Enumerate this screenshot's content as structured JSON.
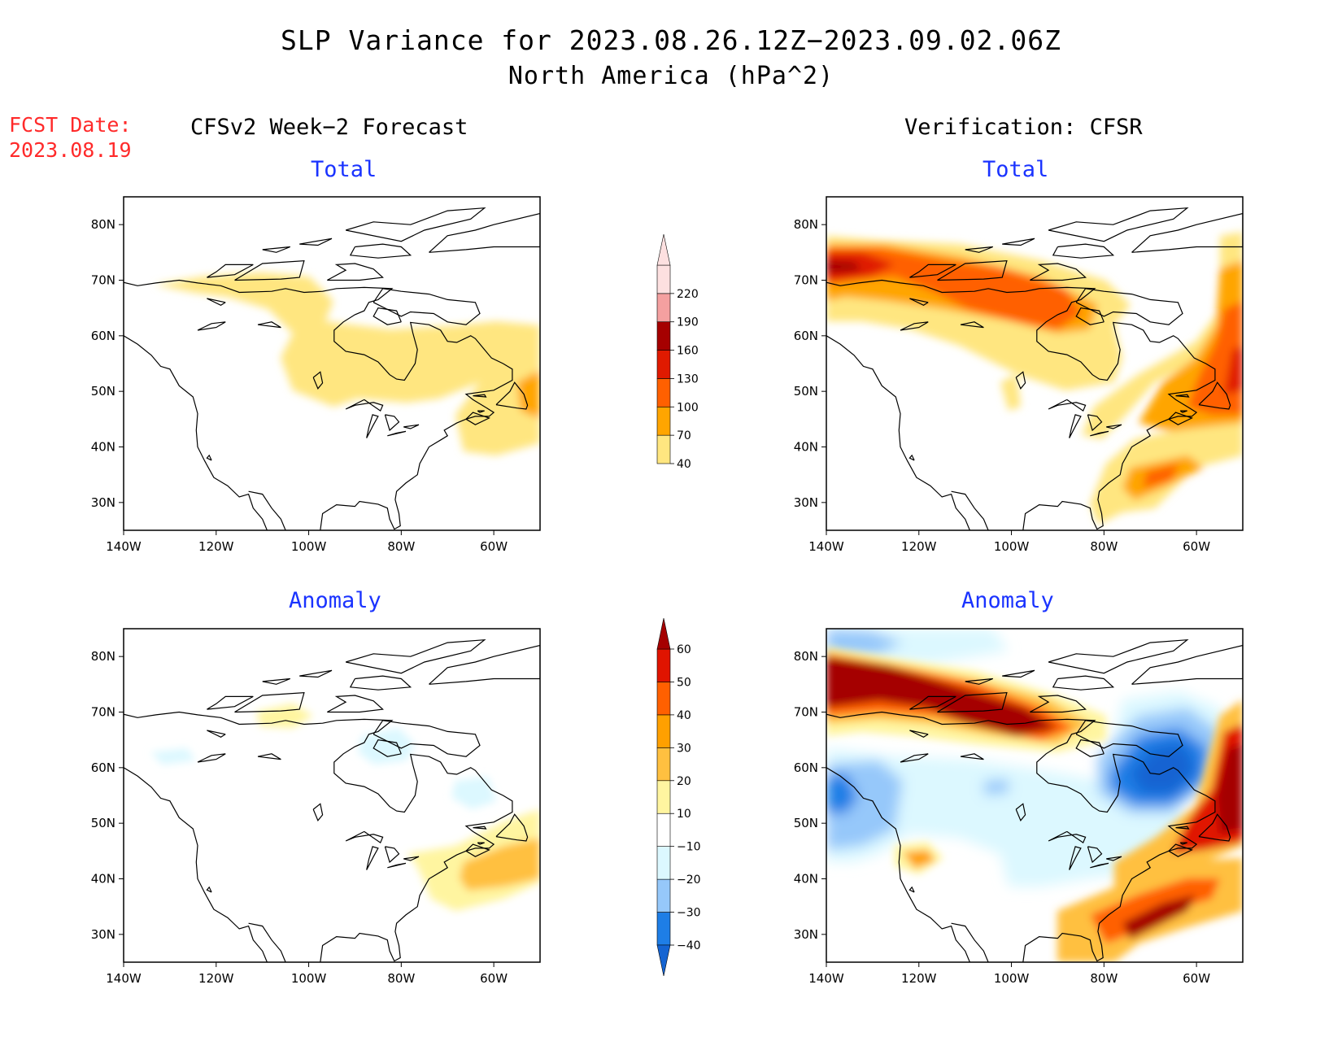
{
  "title": "SLP Variance for 2023.08.26.12Z−2023.09.02.06Z",
  "subtitle": "North America (hPa^2)",
  "fcst_date": {
    "label": "FCST Date:",
    "value": "2023.08.19"
  },
  "columns": {
    "forecast": "CFSv2 Week−2 Forecast",
    "verification": "Verification: CFSR"
  },
  "panels": [
    {
      "id": "forecast-total",
      "title": "Total"
    },
    {
      "id": "verify-total",
      "title": "Total"
    },
    {
      "id": "forecast-anomaly",
      "title": "Anomaly"
    },
    {
      "id": "verify-anomaly",
      "title": "Anomaly"
    }
  ],
  "axes": {
    "lon_ticks": [
      "140W",
      "120W",
      "100W",
      "80W",
      "60W"
    ],
    "lat_ticks": [
      "80N",
      "70N",
      "60N",
      "50N",
      "40N",
      "30N"
    ],
    "lon_range": [
      -140,
      -50
    ],
    "lat_range": [
      25,
      85
    ]
  },
  "total_colorbar": {
    "labels": [
      "40",
      "70",
      "100",
      "130",
      "160",
      "190",
      "220"
    ],
    "colors": [
      "#ffe680",
      "#ffa500",
      "#ff6000",
      "#e01a00",
      "#a50000",
      "#f4a0a0",
      "#fde0e0"
    ]
  },
  "anomaly_colorbar": {
    "labels": [
      "−40",
      "−30",
      "−20",
      "−10",
      "10",
      "20",
      "30",
      "40",
      "50",
      "60"
    ],
    "colors": [
      "#1464d2",
      "#1e7ee6",
      "#96c8fa",
      "#dcf8ff",
      "#ffffff",
      "#fff5a0",
      "#ffc040",
      "#ffa000",
      "#ff6000",
      "#e01400",
      "#a50000"
    ]
  }
}
